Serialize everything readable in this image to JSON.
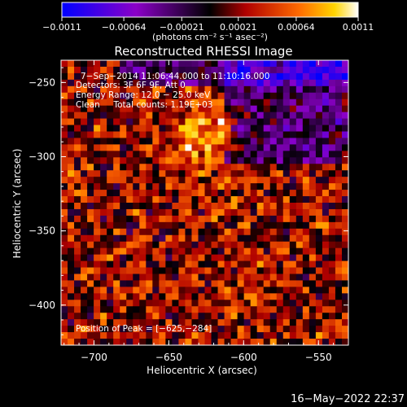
{
  "chart_data": {
    "type": "heatmap",
    "title": "Reconstructed RHESSI Image",
    "xlabel": "Heliocentric X (arcsec)",
    "ylabel": "Heliocentric Y (arcsec)",
    "xlim": [
      -722,
      -530
    ],
    "ylim": [
      -427,
      -235
    ],
    "x_ticks": [
      -700,
      -650,
      -600,
      -550
    ],
    "y_ticks": [
      -250,
      -300,
      -350,
      -400
    ],
    "x_tick_labels": [
      "−700",
      "−650",
      "−600",
      "−550"
    ],
    "y_tick_labels": [
      "−250",
      "−300",
      "−350",
      "−400"
    ],
    "colorbar": {
      "range": [
        -0.0011,
        0.0011
      ],
      "ticks": [
        -0.0011,
        -0.00064,
        -0.00021,
        0.00021,
        0.00064,
        0.0011
      ],
      "tick_labels": [
        "−0.0011",
        "−0.00064",
        "−0.00021",
        "0.00021",
        "0.00064",
        "0.0011"
      ],
      "units": "(photons cm⁻² s⁻¹ asec⁻²)"
    },
    "annotations": {
      "line1": "7−Sep−2014 11:06:44.000 to 11:10:16.000",
      "line2": "Detectors: 3F 6F 9F, Att 0",
      "line3": "Energy Range: 12.0 − 25.0 keV",
      "line4": "Clean     Total counts: 1.19E+03",
      "peak": "Position of Peak = [−625,−284]"
    },
    "peak_position": [
      -625,
      -284
    ]
  },
  "footer": {
    "timestamp": "16−May−2022 22:37"
  },
  "colors": {
    "background": "#000000",
    "text": "#ffffff"
  }
}
